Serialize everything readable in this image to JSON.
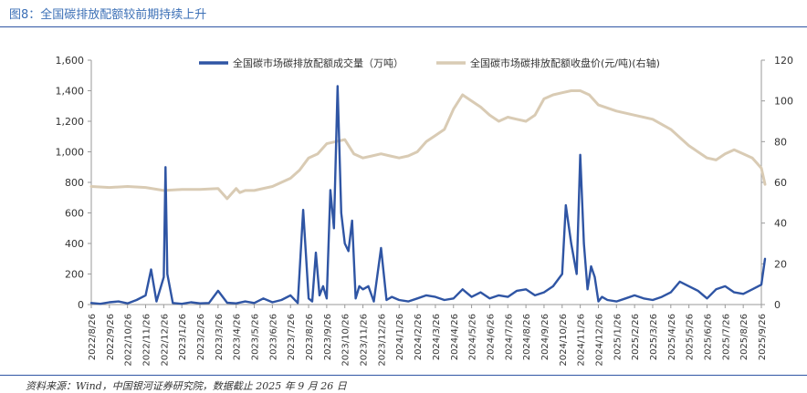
{
  "title": "图8：全国碳排放配额较前期持续上升",
  "source": "资料来源：Wind，中国银河证券研究院，数据截止 2025 年 9 月 26 日",
  "colors": {
    "title": "#3b6fb6",
    "volume": "#2f55a4",
    "price": "#d9cbb4",
    "rule": "#2f55a4"
  },
  "chart_data": {
    "type": "line",
    "title": "",
    "xlabel": "",
    "ylabel_left": "",
    "ylabel_right": "",
    "ylim_left": [
      0,
      1600
    ],
    "ylim_right": [
      0,
      120
    ],
    "yticks_left": [
      "0",
      "200",
      "400",
      "600",
      "800",
      "1,000",
      "1,200",
      "1,400",
      "1,600"
    ],
    "yticks_right": [
      "0",
      "20",
      "40",
      "60",
      "80",
      "100",
      "120"
    ],
    "xticks": [
      "2022/8/26",
      "2022/9/26",
      "2022/10/26",
      "2022/11/26",
      "2022/12/26",
      "2023/1/26",
      "2023/2/26",
      "2023/3/26",
      "2023/4/26",
      "2023/5/26",
      "2023/6/26",
      "2023/7/26",
      "2023/8/26",
      "2023/9/26",
      "2023/10/26",
      "2023/11/26",
      "2023/12/26",
      "2024/1/26",
      "2024/2/26",
      "2024/3/26",
      "2024/4/26",
      "2024/5/26",
      "2024/6/26",
      "2024/7/26",
      "2024/8/26",
      "2024/9/26",
      "2024/10/26",
      "2024/11/26",
      "2024/12/26",
      "2025/1/26",
      "2025/2/26",
      "2025/3/26",
      "2025/4/26",
      "2025/5/26",
      "2025/6/26",
      "2025/7/26",
      "2025/8/26",
      "2025/9/26"
    ],
    "legend": [
      "全国碳市场碳排放配额成交量（万吨）",
      "全国碳市场碳排放配额收盘价(元/吨)(右轴)"
    ],
    "series": [
      {
        "name": "全国碳市场碳排放配额成交量（万吨）",
        "axis": "left",
        "x": [
          0,
          0.5,
          1,
          1.5,
          2,
          2.5,
          3,
          3.3,
          3.6,
          4,
          4.1,
          4.2,
          4.5,
          5,
          5.5,
          6,
          6.5,
          7,
          7.5,
          8,
          8.5,
          9,
          9.5,
          10,
          10.5,
          11,
          11.4,
          11.7,
          12,
          12.2,
          12.4,
          12.6,
          12.8,
          13,
          13.2,
          13.4,
          13.6,
          13.8,
          14,
          14.2,
          14.4,
          14.6,
          14.8,
          15,
          15.3,
          15.6,
          16,
          16.3,
          16.6,
          17,
          17.5,
          18,
          18.5,
          19,
          19.5,
          20,
          20.5,
          21,
          21.5,
          22,
          22.5,
          23,
          23.5,
          24,
          24.5,
          25,
          25.5,
          26,
          26.2,
          26.5,
          26.8,
          27,
          27.2,
          27.4,
          27.6,
          27.8,
          28,
          28.2,
          28.5,
          29,
          29.5,
          30,
          30.5,
          31,
          31.5,
          32,
          32.5,
          33,
          33.5,
          34,
          34.5,
          35,
          35.5,
          36,
          36.5,
          37,
          37.2
        ],
        "y": [
          10,
          5,
          15,
          20,
          8,
          30,
          60,
          230,
          20,
          180,
          900,
          200,
          10,
          5,
          15,
          8,
          10,
          90,
          12,
          8,
          20,
          10,
          40,
          15,
          30,
          60,
          10,
          620,
          40,
          20,
          340,
          60,
          120,
          40,
          750,
          500,
          1430,
          600,
          400,
          350,
          550,
          40,
          120,
          100,
          120,
          20,
          370,
          30,
          50,
          30,
          20,
          40,
          60,
          50,
          30,
          40,
          100,
          50,
          80,
          40,
          60,
          50,
          90,
          100,
          60,
          80,
          120,
          200,
          650,
          400,
          200,
          980,
          400,
          100,
          250,
          180,
          20,
          50,
          30,
          20,
          40,
          60,
          40,
          30,
          50,
          80,
          150,
          120,
          90,
          40,
          100,
          120,
          80,
          70,
          100,
          130,
          300
        ],
        "color": "#2f55a4"
      },
      {
        "name": "全国碳市场碳排放配额收盘价(元/吨)(右轴)",
        "axis": "right",
        "x": [
          0,
          1,
          2,
          3,
          4,
          5,
          6,
          7,
          7.5,
          8,
          8.2,
          8.5,
          9,
          10,
          11,
          11.5,
          12,
          12.5,
          13,
          13.5,
          14,
          14.5,
          15,
          15.5,
          16,
          16.5,
          17,
          17.5,
          18,
          18.5,
          19,
          19.5,
          20,
          20.5,
          21,
          21.5,
          22,
          22.5,
          23,
          23.5,
          24,
          24.5,
          25,
          25.5,
          26,
          26.5,
          27,
          27.5,
          28,
          29,
          30,
          31,
          32,
          33,
          34,
          34.5,
          35,
          35.5,
          36,
          36.5,
          37,
          37.2
        ],
        "y": [
          58,
          57.5,
          58,
          57.5,
          56,
          56.5,
          56.5,
          57,
          52,
          57,
          55,
          56,
          56,
          58,
          62,
          66,
          72,
          74,
          79,
          80,
          81,
          74,
          72,
          73,
          74,
          73,
          72,
          73,
          75,
          80,
          83,
          86,
          96,
          103,
          100,
          97,
          93,
          90,
          92,
          91,
          90,
          93,
          101,
          103,
          104,
          105,
          105,
          103,
          98,
          95,
          93,
          91,
          86,
          78,
          72,
          71,
          74,
          76,
          74,
          72,
          67,
          59
        ],
        "color": "#d9cbb4"
      }
    ]
  }
}
